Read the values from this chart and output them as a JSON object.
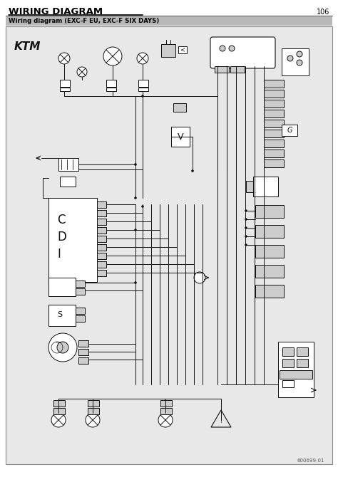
{
  "title": "WIRING DIAGRAM",
  "page_number": "106",
  "subtitle": "Wiring diagram (EXC-F EU, EXC-F SIX DAYS)",
  "bg_color": "#ffffff",
  "header_line_color": "#666666",
  "subtitle_bg": "#b8b8b8",
  "diagram_bg": "#e8e8e8",
  "diagram_border": "#888888",
  "lc": "#111111",
  "lc2": "#333333",
  "footer_text": "600699-01",
  "title_color": "#000000",
  "subtitle_color": "#000000",
  "white": "#ffffff",
  "gray_light": "#cccccc"
}
